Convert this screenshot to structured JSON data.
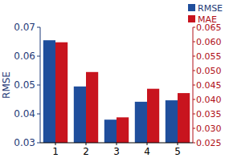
{
  "chart_data": {
    "type": "bar",
    "y_label": "RMSE",
    "categories": [
      "1",
      "2",
      "3",
      "4",
      "5"
    ],
    "series": [
      {
        "name": "RMSE",
        "color": "#1f4e9c",
        "values": [
          0.0655,
          0.0495,
          0.038,
          0.0442,
          0.0447
        ]
      },
      {
        "name": "MAE",
        "color": "#c8141e",
        "axis": "y2",
        "values": [
          0.0598,
          0.0495,
          0.0338,
          0.0437,
          0.0422
        ]
      }
    ],
    "ylim": [
      0.03,
      0.07
    ],
    "yticks": [
      0.03,
      0.04,
      0.05,
      0.06,
      0.07
    ],
    "y2lim": [
      0.025,
      0.065
    ],
    "y2ticks": [
      {
        "value": 0.025,
        "label": "0.025"
      },
      {
        "value": 0.03,
        "label": "0.030"
      },
      {
        "value": 0.035,
        "label": "0.035"
      },
      {
        "value": 0.04,
        "label": "0.040"
      },
      {
        "value": 0.045,
        "label": "0.045"
      },
      {
        "value": 0.05,
        "label": "0.050"
      },
      {
        "value": 0.055,
        "label": "0.055"
      },
      {
        "value": 0.06,
        "label": "0.060"
      },
      {
        "value": 0.065,
        "label": "0.065"
      }
    ],
    "grid": false,
    "legend": "upper right"
  }
}
